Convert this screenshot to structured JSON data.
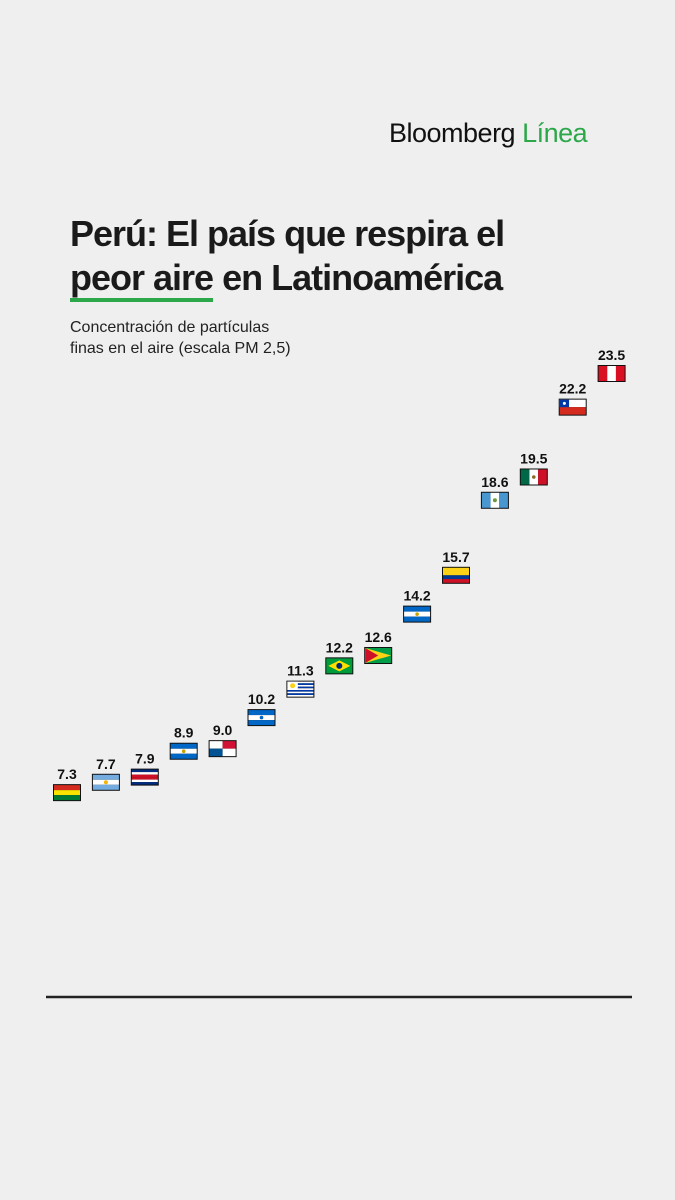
{
  "brand": {
    "name": "Bloomberg",
    "accent": "Línea",
    "accent_color": "#2ca84a"
  },
  "title": {
    "line1": "Perú: El país que respira el",
    "highlight": "peor aire",
    "line2_rest": " en Latinoamérica"
  },
  "subtitle": {
    "line1": "Concentración de partículas",
    "line2": "finas en el aire (escala PM 2,5)"
  },
  "chart_data": {
    "type": "bar",
    "flags": [
      "bolivia-flag",
      "argentina-flag",
      "costa-rica-flag",
      "nicaragua-flag",
      "panama-flag",
      "honduras-flag",
      "uruguay-flag",
      "brazil-flag",
      "guyana-flag",
      "el-salvador-flag",
      "colombia-flag",
      "guatemala-flag",
      "mexico-flag",
      "chile-flag",
      "peru-flag"
    ],
    "values": [
      7.3,
      7.7,
      7.9,
      8.9,
      9.0,
      10.2,
      11.3,
      12.2,
      12.6,
      14.2,
      15.7,
      18.6,
      19.5,
      22.2,
      23.5
    ],
    "ylim": [
      0,
      23.5
    ],
    "grid": false
  }
}
